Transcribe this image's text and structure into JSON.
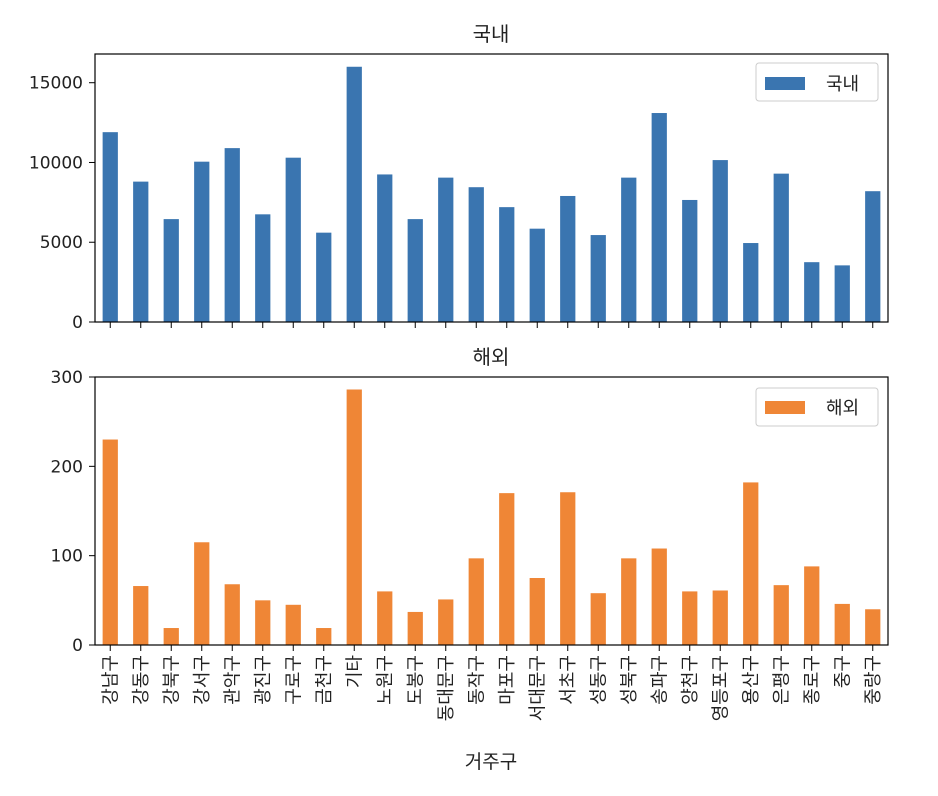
{
  "chart_data": [
    {
      "type": "bar",
      "title": "국내",
      "xlabel": "",
      "ylabel": "",
      "ylim": [
        0,
        16800
      ],
      "yticks": [
        0,
        5000,
        10000,
        15000
      ],
      "legend_position": "top-right",
      "grid": false,
      "categories": [
        "강남구",
        "강동구",
        "강북구",
        "강서구",
        "관악구",
        "광진구",
        "구로구",
        "금천구",
        "기타",
        "노원구",
        "도봉구",
        "동대문구",
        "동작구",
        "마포구",
        "서대문구",
        "서초구",
        "성동구",
        "성북구",
        "송파구",
        "양천구",
        "영등포구",
        "용산구",
        "은평구",
        "종로구",
        "중구",
        "중랑구"
      ],
      "series": [
        {
          "name": "국내",
          "color": "#3a75b0",
          "values": [
            11900,
            8800,
            6450,
            10050,
            10900,
            6750,
            10300,
            5600,
            16000,
            9250,
            6450,
            9050,
            8450,
            7200,
            5850,
            7900,
            5450,
            9050,
            13100,
            7650,
            10150,
            4950,
            9300,
            3750,
            3550,
            8200
          ]
        }
      ]
    },
    {
      "type": "bar",
      "title": "해외",
      "xlabel": "거주구",
      "ylabel": "",
      "ylim": [
        0,
        300
      ],
      "yticks": [
        0,
        100,
        200,
        300
      ],
      "legend_position": "top-right",
      "grid": false,
      "categories": [
        "강남구",
        "강동구",
        "강북구",
        "강서구",
        "관악구",
        "광진구",
        "구로구",
        "금천구",
        "기타",
        "노원구",
        "도봉구",
        "동대문구",
        "동작구",
        "마포구",
        "서대문구",
        "서초구",
        "성동구",
        "성북구",
        "송파구",
        "양천구",
        "영등포구",
        "용산구",
        "은평구",
        "종로구",
        "중구",
        "중랑구"
      ],
      "series": [
        {
          "name": "해외",
          "color": "#ef8636",
          "values": [
            230,
            66,
            19,
            115,
            68,
            50,
            45,
            19,
            286,
            60,
            37,
            51,
            97,
            170,
            75,
            171,
            58,
            97,
            108,
            60,
            61,
            182,
            67,
            88,
            46,
            40
          ]
        }
      ]
    }
  ]
}
